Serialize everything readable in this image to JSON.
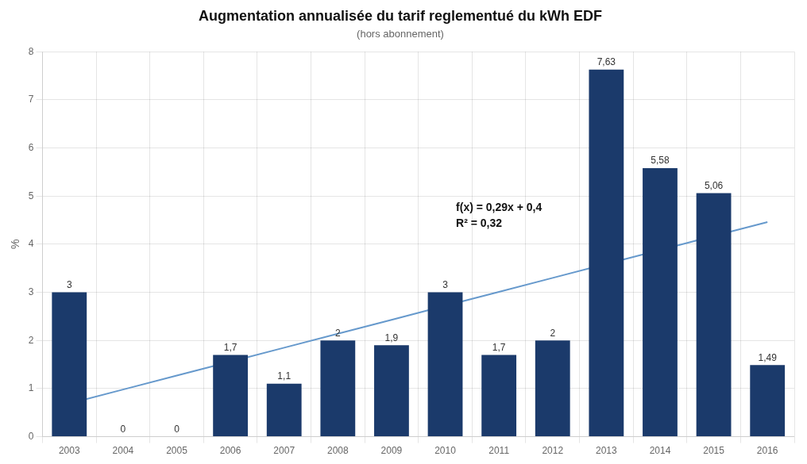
{
  "chart_data": {
    "type": "bar",
    "title": "Augmentation annualisée du tarif reglementué du kWh EDF",
    "subtitle": "(hors abonnement)",
    "ylabel": "%",
    "categories": [
      "2003",
      "2004",
      "2005",
      "2006",
      "2007",
      "2008",
      "2009",
      "2010",
      "2011",
      "2012",
      "2013",
      "2014",
      "2015",
      "2016"
    ],
    "series": [
      {
        "type": "bar",
        "color": "#1b3a6b",
        "values": [
          3,
          0,
          0,
          1.7,
          1.1,
          2,
          1.9,
          3,
          1.7,
          2,
          7.63,
          5.58,
          5.06,
          1.49
        ],
        "value_labels": [
          "3",
          "0",
          "0",
          "1,7",
          "1,1",
          "2",
          "1,9",
          "3",
          "1,7",
          "2",
          "7,63",
          "5,58",
          "5,06",
          "1,49"
        ],
        "data_labels": true
      },
      {
        "type": "line",
        "color": "#6699cc",
        "values": [
          0.69,
          0.98,
          1.27,
          1.56,
          1.85,
          2.14,
          2.43,
          2.72,
          3.01,
          3.3,
          3.59,
          3.88,
          4.17,
          4.46
        ]
      }
    ],
    "annotations": [
      "f(x) = 0,29x + 0,4",
      "R² = 0,32"
    ],
    "ylim": [
      0,
      8
    ],
    "yticks": [
      0,
      1,
      2,
      3,
      4,
      5,
      6,
      7,
      8
    ],
    "grid": true
  }
}
